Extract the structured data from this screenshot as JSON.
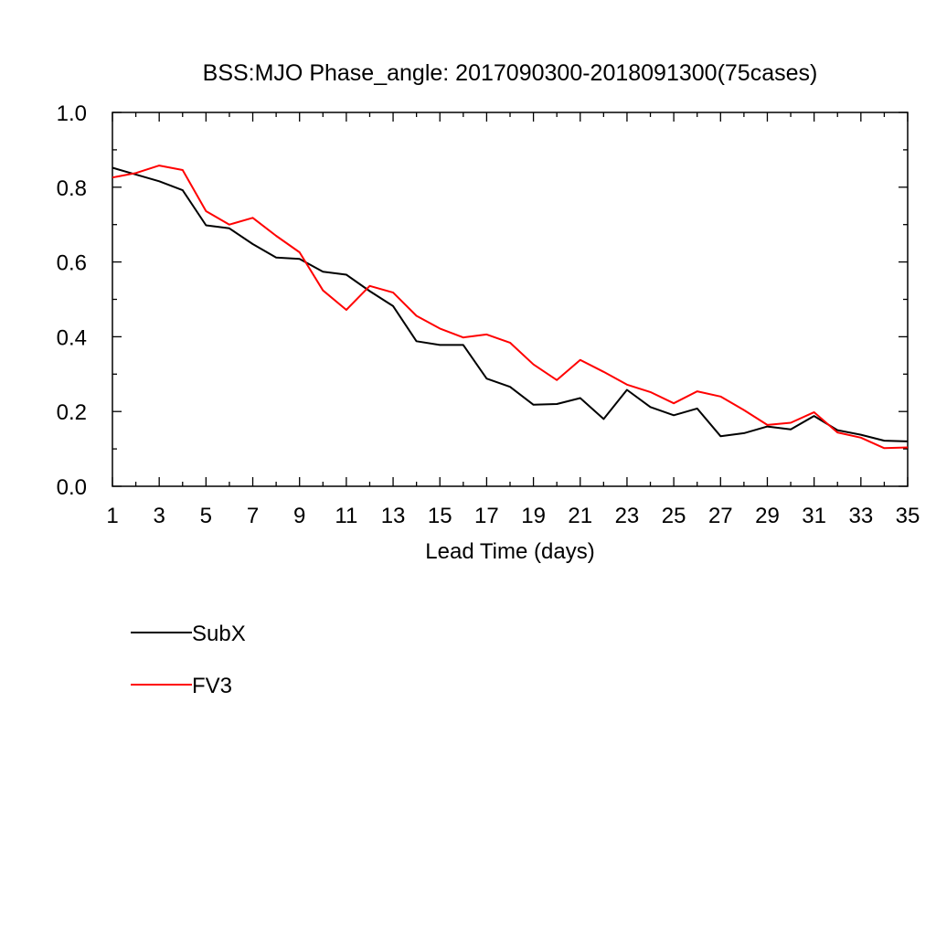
{
  "chart_data": {
    "type": "line",
    "title": "BSS:MJO Phase_angle: 2017090300-2018091300(75cases)",
    "xlabel": "Lead Time (days)",
    "ylabel": "",
    "xlim": [
      1,
      35
    ],
    "ylim": [
      0,
      1
    ],
    "xticks": [
      1,
      3,
      5,
      7,
      9,
      11,
      13,
      15,
      17,
      19,
      21,
      23,
      25,
      27,
      29,
      31,
      33,
      35
    ],
    "yticks": [
      "0.0",
      "0.2",
      "0.4",
      "0.6",
      "0.8",
      "1.0"
    ],
    "grid": false,
    "legend_position": "bottom-left",
    "x": [
      1,
      2,
      3,
      4,
      5,
      6,
      7,
      8,
      9,
      10,
      11,
      12,
      13,
      14,
      15,
      16,
      17,
      18,
      19,
      20,
      21,
      22,
      23,
      24,
      25,
      26,
      27,
      28,
      29,
      30,
      31,
      32,
      33,
      34,
      35
    ],
    "series": [
      {
        "name": "SubX",
        "color": "#000000",
        "values": [
          0.852,
          0.834,
          0.816,
          0.792,
          0.698,
          0.69,
          0.648,
          0.612,
          0.608,
          0.574,
          0.566,
          0.522,
          0.482,
          0.388,
          0.378,
          0.378,
          0.288,
          0.266,
          0.218,
          0.22,
          0.236,
          0.18,
          0.258,
          0.212,
          0.19,
          0.208,
          0.134,
          0.142,
          0.16,
          0.152,
          0.188,
          0.15,
          0.138,
          0.122,
          0.12
        ]
      },
      {
        "name": "FV3",
        "color": "#ff0000",
        "values": [
          0.826,
          0.838,
          0.858,
          0.846,
          0.736,
          0.7,
          0.718,
          0.67,
          0.626,
          0.524,
          0.472,
          0.536,
          0.518,
          0.456,
          0.422,
          0.398,
          0.406,
          0.384,
          0.326,
          0.284,
          0.338,
          0.306,
          0.272,
          0.252,
          0.222,
          0.254,
          0.24,
          0.204,
          0.164,
          0.17,
          0.198,
          0.144,
          0.13,
          0.102,
          0.104
        ]
      }
    ]
  }
}
